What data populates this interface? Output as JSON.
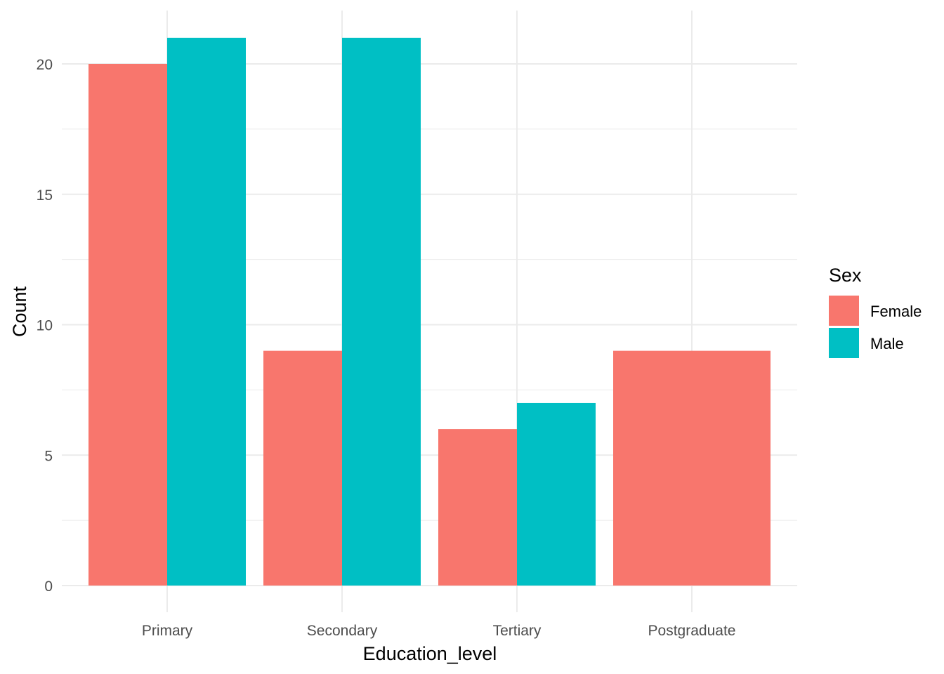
{
  "chart_data": {
    "type": "bar",
    "xlabel": "Education_level",
    "ylabel": "Count",
    "categories": [
      "Primary",
      "Secondary",
      "Tertiary",
      "Postgraduate"
    ],
    "series": [
      {
        "name": "Female",
        "color": "#F8766D",
        "values": [
          20,
          9,
          6,
          9
        ]
      },
      {
        "name": "Male",
        "color": "#00BFC4",
        "values": [
          21,
          21,
          7,
          null
        ]
      }
    ],
    "ylim": [
      0,
      22
    ],
    "yticks": [
      0,
      5,
      10,
      15,
      20
    ],
    "grid": true,
    "legend": {
      "title": "Sex",
      "position": "right"
    }
  }
}
